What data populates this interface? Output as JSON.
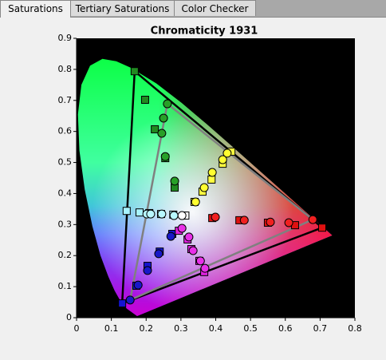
{
  "tabs": [
    "Saturations",
    "Tertiary Saturations",
    "Color Checker"
  ],
  "chart_data": {
    "type": "scatter",
    "title": "Chromaticity 1931",
    "xlim": [
      0,
      0.8
    ],
    "ylim": [
      0,
      0.9
    ],
    "xticks": [
      0,
      0.1,
      0.2,
      0.3,
      0.4,
      0.5,
      0.6,
      0.7,
      0.8
    ],
    "yticks": [
      0,
      0.1,
      0.2,
      0.3,
      0.4,
      0.5,
      0.6,
      0.7,
      0.8,
      0.9
    ],
    "triangles": [
      {
        "color": "#000000",
        "x": [
          0.167,
          0.706,
          0.131
        ],
        "y": [
          0.794,
          0.29,
          0.046
        ]
      },
      {
        "color": "#808080",
        "x": [
          0.261,
          0.679,
          0.154
        ],
        "y": [
          0.689,
          0.316,
          0.057
        ]
      }
    ],
    "series": [
      {
        "marker": "square",
        "color": "#e01010",
        "x": [
          0.706,
          0.628,
          0.55,
          0.468,
          0.39
        ],
        "y": [
          0.29,
          0.298,
          0.306,
          0.314,
          0.321
        ]
      },
      {
        "marker": "circle",
        "color": "#f02020",
        "x": [
          0.679,
          0.61,
          0.557,
          0.482,
          0.399
        ],
        "y": [
          0.316,
          0.306,
          0.308,
          0.314,
          0.324
        ]
      },
      {
        "marker": "square",
        "color": "#218a21",
        "x": [
          0.167,
          0.197,
          0.225,
          0.255,
          0.282
        ],
        "y": [
          0.794,
          0.702,
          0.607,
          0.514,
          0.419
        ]
      },
      {
        "marker": "circle",
        "color": "#28a028",
        "x": [
          0.261,
          0.25,
          0.245,
          0.255,
          0.282
        ],
        "y": [
          0.689,
          0.643,
          0.594,
          0.519,
          0.44
        ]
      },
      {
        "marker": "square",
        "color": "#1414d0",
        "x": [
          0.131,
          0.172,
          0.204,
          0.239,
          0.275
        ],
        "y": [
          0.046,
          0.103,
          0.167,
          0.213,
          0.27
        ]
      },
      {
        "marker": "circle",
        "color": "#1818c8",
        "x": [
          0.154,
          0.177,
          0.204,
          0.236,
          0.271
        ],
        "y": [
          0.057,
          0.105,
          0.152,
          0.206,
          0.262
        ]
      },
      {
        "marker": "square",
        "color": "#a8f4ff",
        "x": [
          0.144,
          0.181,
          0.209,
          0.243,
          0.278
        ],
        "y": [
          0.344,
          0.339,
          0.337,
          0.334,
          0.332
        ]
      },
      {
        "marker": "circle",
        "color": "#b8f8ff",
        "x": [
          0.202,
          0.213,
          0.245,
          0.28
        ],
        "y": [
          0.334,
          0.334,
          0.334,
          0.329
        ]
      },
      {
        "marker": "square",
        "color": "#ffff40",
        "x": [
          0.445,
          0.42,
          0.388,
          0.362,
          0.339
        ],
        "y": [
          0.535,
          0.496,
          0.445,
          0.406,
          0.373
        ]
      },
      {
        "marker": "circle",
        "color": "#ffff30",
        "x": [
          0.433,
          0.42,
          0.39,
          0.367,
          0.342
        ],
        "y": [
          0.53,
          0.509,
          0.468,
          0.419,
          0.373
        ]
      },
      {
        "marker": "square",
        "color": "#e020e0",
        "x": [
          0.367,
          0.353,
          0.33,
          0.319,
          0.294
        ],
        "y": [
          0.147,
          0.183,
          0.221,
          0.252,
          0.28
        ]
      },
      {
        "marker": "circle",
        "color": "#e830e8",
        "x": [
          0.369,
          0.356,
          0.335,
          0.323,
          0.303
        ],
        "y": [
          0.159,
          0.183,
          0.216,
          0.26,
          0.288
        ]
      },
      {
        "marker": "square",
        "color": "#ffffff",
        "x": [
          0.3127
        ],
        "y": [
          0.329
        ]
      },
      {
        "marker": "circle",
        "color": "#ffffff",
        "x": [
          0.303
        ],
        "y": [
          0.329
        ]
      }
    ]
  }
}
